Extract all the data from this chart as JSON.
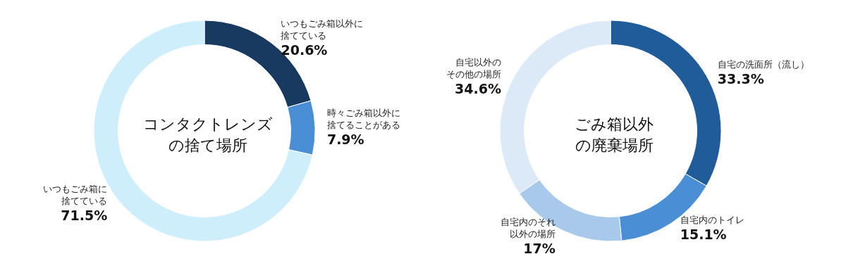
{
  "chart_data": [
    {
      "type": "donut",
      "title": "コンタクトレンズの捨て場所",
      "categories": [
        "いつもごみ箱以外に捨てている",
        "時々ごみ箱以外に捨てることがある",
        "いつもごみ箱に捨てている"
      ],
      "values": [
        20.6,
        7.9,
        71.5
      ],
      "value_labels": [
        "20.6%",
        "7.9%",
        "71.5%"
      ],
      "colors": [
        "#183a60",
        "#4a8fd6",
        "#cdeefa"
      ],
      "data_labels": true,
      "legend": false
    },
    {
      "type": "donut",
      "title": "ごみ箱以外の廃棄場所",
      "categories": [
        "自宅の洗面所（流し）",
        "自宅内のトイレ",
        "自宅内のそれ以外の場所",
        "自宅以外のその他の場所"
      ],
      "values": [
        33.3,
        15.1,
        17,
        34.6
      ],
      "value_labels": [
        "33.3%",
        "15.1%",
        "17%",
        "34.6%"
      ],
      "colors": [
        "#1f5c99",
        "#4a8fd6",
        "#a9c9ea",
        "#dce9f7"
      ],
      "data_labels": true,
      "legend": false
    }
  ]
}
